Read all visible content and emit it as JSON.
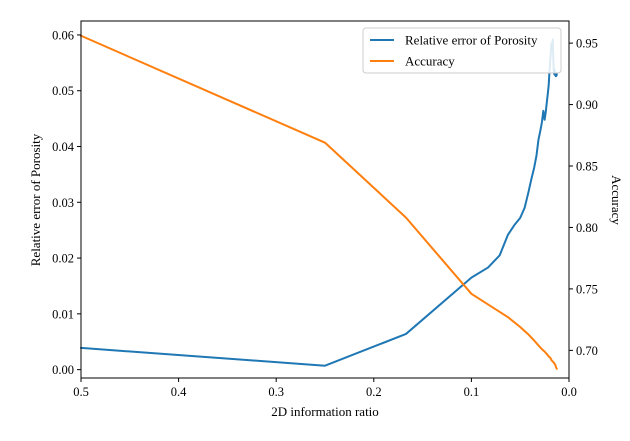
{
  "chart_data": {
    "type": "line",
    "xlabel": "2D information ratio",
    "ylabel_left": "Relative error of Porosity",
    "ylabel_right": "Accuracy",
    "xlim": [
      0.5,
      0.0
    ],
    "ylim_left": [
      -0.0015,
      0.0625
    ],
    "ylim_right": [
      0.6775,
      0.968
    ],
    "x_ticks": [
      0.5,
      0.4,
      0.3,
      0.2,
      0.1,
      0.0
    ],
    "x_tick_labels": [
      "0.5",
      "0.4",
      "0.3",
      "0.2",
      "0.1",
      "0.0"
    ],
    "y_left_ticks": [
      0.0,
      0.01,
      0.02,
      0.03,
      0.04,
      0.05,
      0.06
    ],
    "y_left_tick_labels": [
      "0.00",
      "0.01",
      "0.02",
      "0.03",
      "0.04",
      "0.05",
      "0.06"
    ],
    "y_right_ticks": [
      0.7,
      0.75,
      0.8,
      0.85,
      0.9,
      0.95
    ],
    "y_right_tick_labels": [
      "0.70",
      "0.75",
      "0.80",
      "0.85",
      "0.90",
      "0.95"
    ],
    "grid": false,
    "legend_position": "top-right",
    "series": [
      {
        "name": "Relative error of Porosity",
        "axis": "left",
        "color": "#1f77b4",
        "x": [
          0.5,
          0.25,
          0.167,
          0.1,
          0.083,
          0.071,
          0.0625,
          0.0556,
          0.05,
          0.0455,
          0.0417,
          0.0385,
          0.0357,
          0.0333,
          0.0313,
          0.0294,
          0.0278,
          0.0263,
          0.025,
          0.0238,
          0.0227,
          0.0217,
          0.0208,
          0.02,
          0.0192,
          0.0185,
          0.0179,
          0.0172,
          0.0167,
          0.0161,
          0.0156,
          0.0152,
          0.0147,
          0.0143,
          0.0139,
          0.0135,
          0.0132,
          0.0128,
          0.0125
        ],
        "y": [
          0.0039,
          0.0007,
          0.0064,
          0.0165,
          0.0183,
          0.0205,
          0.0242,
          0.026,
          0.0272,
          0.029,
          0.0317,
          0.0342,
          0.0362,
          0.0384,
          0.0412,
          0.0428,
          0.0443,
          0.0464,
          0.0448,
          0.0462,
          0.048,
          0.0495,
          0.051,
          0.0535,
          0.0555,
          0.0572,
          0.0585,
          0.0578,
          0.0592,
          0.0558,
          0.0535,
          0.053,
          0.0538,
          0.0528,
          0.0533,
          0.0526,
          0.0531,
          0.0527,
          0.053
        ]
      },
      {
        "name": "Accuracy",
        "axis": "right",
        "color": "#ff7f0e",
        "x": [
          0.5,
          0.25,
          0.167,
          0.1,
          0.0625,
          0.05,
          0.0417,
          0.0357,
          0.0313,
          0.0278,
          0.025,
          0.0227,
          0.0208,
          0.0192,
          0.0179,
          0.0167,
          0.0156,
          0.0147,
          0.0139,
          0.0132,
          0.0125
        ],
        "y": [
          0.956,
          0.869,
          0.808,
          0.746,
          0.727,
          0.719,
          0.713,
          0.708,
          0.704,
          0.701,
          0.699,
          0.697,
          0.695,
          0.694,
          0.692,
          0.691,
          0.69,
          0.689,
          0.688,
          0.686,
          0.685
        ]
      }
    ]
  }
}
